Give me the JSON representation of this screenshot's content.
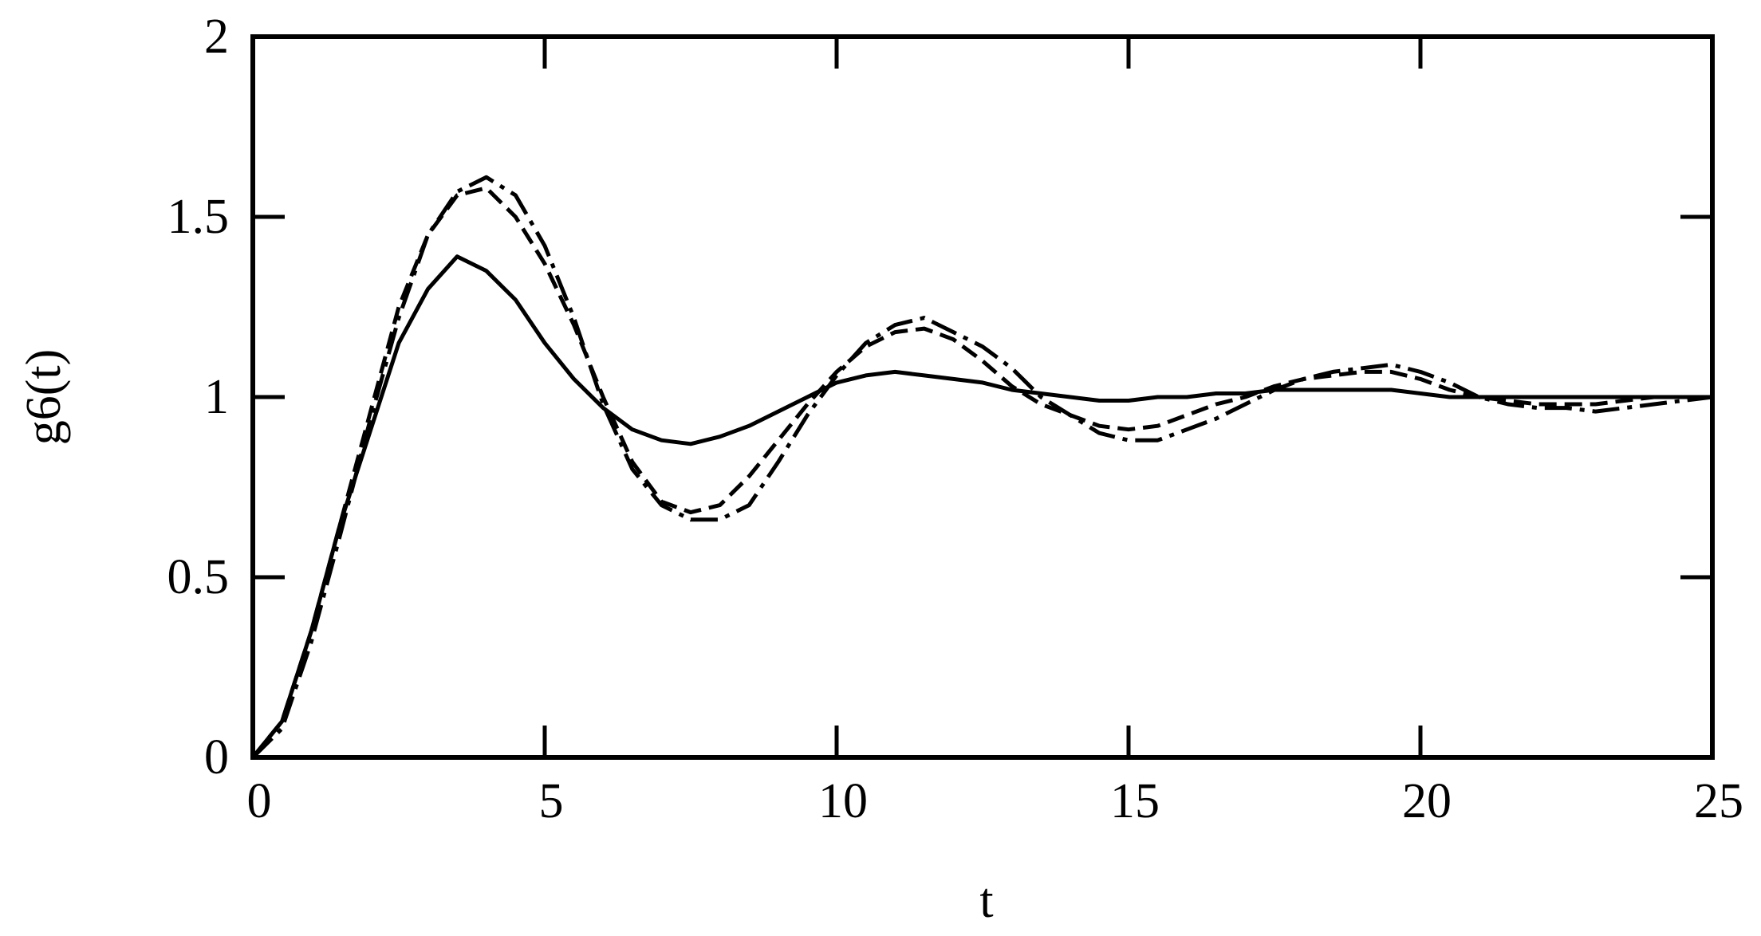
{
  "chart_data": {
    "type": "line",
    "x_label": "t",
    "y_label": "g6(t)",
    "x": [
      0,
      0.5,
      1,
      1.5,
      2,
      2.5,
      3,
      3.5,
      4,
      4.5,
      5,
      5.5,
      6,
      6.5,
      7,
      7.5,
      8,
      8.5,
      9,
      9.5,
      10,
      10.5,
      11,
      11.5,
      12,
      12.5,
      13,
      13.5,
      14,
      14.5,
      15,
      15.5,
      16,
      16.5,
      17,
      17.5,
      18,
      18.5,
      19,
      19.5,
      20,
      20.5,
      21,
      21.5,
      22,
      22.5,
      23,
      23.5,
      24,
      24.5,
      25
    ],
    "series": [
      {
        "color": "#000000",
        "dash": "solid",
        "values": [
          0,
          0.1,
          0.35,
          0.65,
          0.9,
          1.15,
          1.3,
          1.39,
          1.35,
          1.27,
          1.15,
          1.05,
          0.97,
          0.91,
          0.88,
          0.87,
          0.89,
          0.92,
          0.96,
          1.0,
          1.04,
          1.06,
          1.07,
          1.06,
          1.05,
          1.04,
          1.02,
          1.01,
          1.0,
          0.99,
          0.99,
          1.0,
          1.0,
          1.01,
          1.01,
          1.02,
          1.02,
          1.02,
          1.02,
          1.02,
          1.01,
          1.0,
          1.0,
          1.0,
          1.0,
          1.0,
          1.0,
          1.0,
          1.0,
          1.0,
          1.0
        ]
      },
      {
        "color": "#000000",
        "dash": "dashed",
        "values": [
          0,
          0.1,
          0.35,
          0.65,
          0.95,
          1.25,
          1.45,
          1.56,
          1.58,
          1.5,
          1.37,
          1.2,
          1.0,
          0.82,
          0.71,
          0.68,
          0.7,
          0.78,
          0.88,
          0.98,
          1.07,
          1.14,
          1.18,
          1.19,
          1.16,
          1.1,
          1.03,
          0.98,
          0.95,
          0.92,
          0.91,
          0.92,
          0.95,
          0.98,
          1.0,
          1.03,
          1.05,
          1.06,
          1.07,
          1.07,
          1.05,
          1.02,
          1.0,
          0.99,
          0.98,
          0.98,
          0.98,
          0.99,
          1.0,
          1.0,
          1.0
        ]
      },
      {
        "color": "#000000",
        "dash": "dashdot",
        "values": [
          0,
          0.08,
          0.32,
          0.62,
          0.93,
          1.22,
          1.45,
          1.57,
          1.61,
          1.56,
          1.42,
          1.22,
          0.98,
          0.8,
          0.7,
          0.66,
          0.66,
          0.7,
          0.82,
          0.95,
          1.06,
          1.15,
          1.2,
          1.22,
          1.18,
          1.14,
          1.08,
          1.0,
          0.95,
          0.9,
          0.88,
          0.88,
          0.91,
          0.94,
          0.98,
          1.02,
          1.05,
          1.07,
          1.08,
          1.09,
          1.07,
          1.04,
          1.0,
          0.98,
          0.97,
          0.97,
          0.96,
          0.97,
          0.98,
          0.99,
          1.0
        ]
      }
    ],
    "xlim": [
      0,
      25
    ],
    "ylim": [
      0,
      2
    ],
    "xticks": [
      0,
      5,
      10,
      15,
      20,
      25
    ],
    "yticks": [
      0,
      0.5,
      1,
      1.5,
      2
    ]
  }
}
